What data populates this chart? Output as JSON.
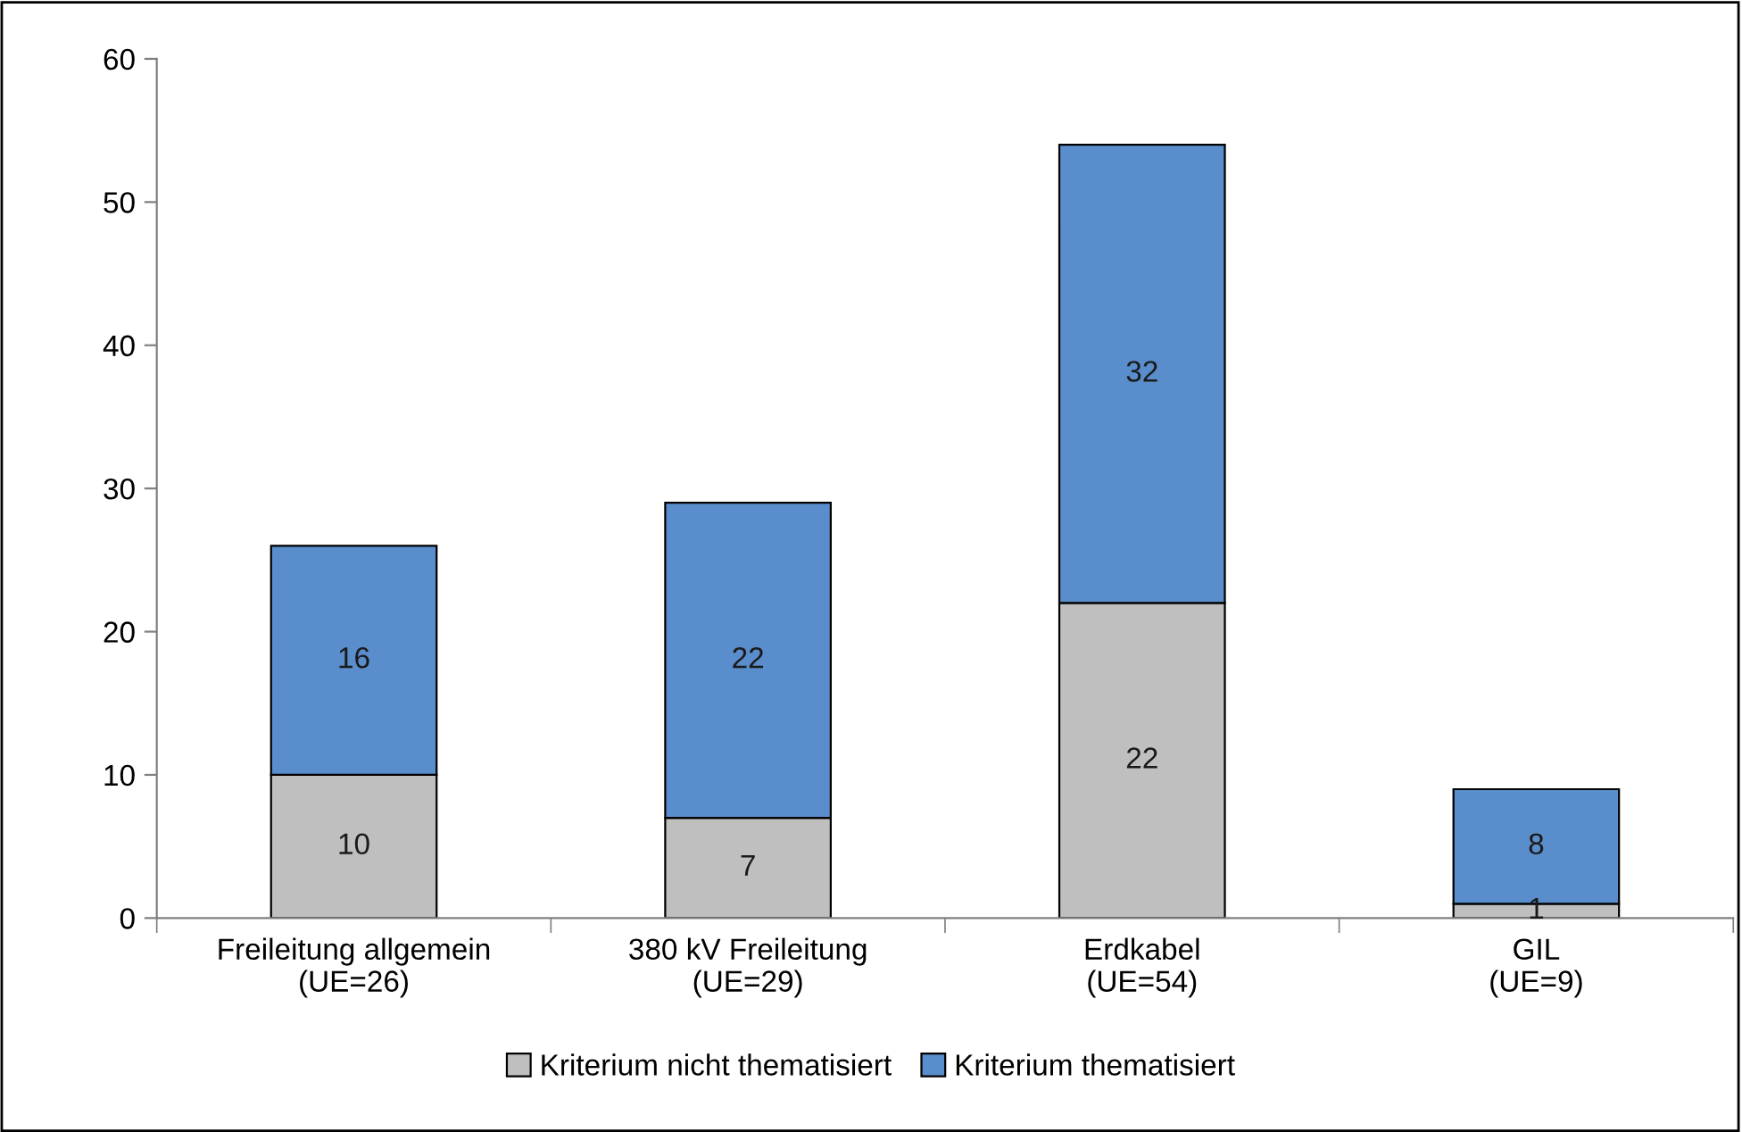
{
  "chart_data": {
    "type": "bar",
    "stacked": true,
    "categories": [
      "Freileitung allgemein\n(UE=26)",
      "380 kV Freileitung\n(UE=29)",
      "Erdkabel\n(UE=54)",
      "GIL\n(UE=9)"
    ],
    "series": [
      {
        "name": "Kriterium nicht thematisiert",
        "color": "#bfbfbf",
        "values": [
          10,
          7,
          22,
          1
        ]
      },
      {
        "name": "Kriterium thematisiert",
        "color": "#5a8dcb",
        "values": [
          16,
          22,
          32,
          8
        ]
      }
    ],
    "ylim": [
      0,
      60
    ],
    "yticks": [
      0,
      10,
      20,
      30,
      40,
      50,
      60
    ],
    "data_labels": true,
    "grid": false,
    "legend": "bottom"
  }
}
